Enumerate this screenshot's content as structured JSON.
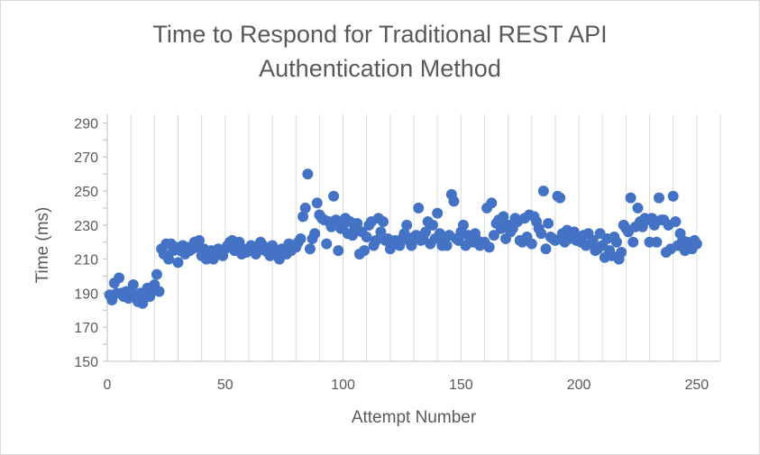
{
  "chart_data": {
    "type": "scatter",
    "title": "Time to Respond for Traditional REST API Authentication Method",
    "title_lines": [
      "Time to Respond for Traditional REST API",
      "Authentication Method"
    ],
    "xlabel": "Attempt Number",
    "ylabel": "Time (ms)",
    "xlim": [
      0,
      260
    ],
    "ylim": [
      150,
      295
    ],
    "x_ticks": [
      0,
      50,
      100,
      150,
      200,
      250
    ],
    "y_ticks": [
      150,
      170,
      190,
      210,
      230,
      250,
      270,
      290
    ],
    "grid": "vertical",
    "legend": "none",
    "marker_color": "#4472c4",
    "series": [
      {
        "x": [
          1,
          2,
          3,
          4,
          5,
          6,
          7,
          8,
          9,
          10,
          11,
          12,
          13,
          14,
          15,
          16,
          17,
          18,
          19,
          20,
          21,
          22,
          23,
          24,
          25,
          26,
          27,
          28,
          29,
          30,
          31,
          32,
          33,
          34,
          35,
          36,
          37,
          38,
          39,
          40,
          41,
          42,
          43,
          44,
          45,
          46,
          47,
          48,
          49,
          50,
          51,
          52,
          53,
          54,
          55,
          56,
          57,
          58,
          59,
          60,
          61,
          62,
          63,
          64,
          65,
          66,
          67,
          68,
          69,
          70,
          71,
          72,
          73,
          74,
          75,
          76,
          77,
          78,
          79,
          80,
          81,
          82,
          83,
          84,
          85,
          86,
          87,
          88,
          89,
          90,
          91,
          92,
          93,
          94,
          95,
          96,
          97,
          98,
          99,
          100,
          101,
          102,
          103,
          104,
          105,
          106,
          107,
          108,
          109,
          110,
          111,
          112,
          113,
          114,
          115,
          116,
          117,
          118,
          119,
          120,
          121,
          122,
          123,
          124,
          125,
          126,
          127,
          128,
          129,
          130,
          131,
          132,
          133,
          134,
          135,
          136,
          137,
          138,
          139,
          140,
          141,
          142,
          143,
          144,
          145,
          146,
          147,
          148,
          149,
          150,
          151,
          152,
          153,
          154,
          155,
          156,
          157,
          158,
          159,
          160,
          161,
          162,
          163,
          164,
          165,
          166,
          167,
          168,
          169,
          170,
          171,
          172,
          173,
          174,
          175,
          176,
          177,
          178,
          179,
          180,
          181,
          182,
          183,
          184,
          185,
          186,
          187,
          188,
          189,
          190,
          191,
          192,
          193,
          194,
          195,
          196,
          197,
          198,
          199,
          200,
          201,
          202,
          203,
          204,
          205,
          206,
          207,
          208,
          209,
          210,
          211,
          212,
          213,
          214,
          215,
          216,
          217,
          218,
          219,
          220,
          221,
          222,
          223,
          224,
          225,
          226,
          227,
          228,
          229,
          230,
          231,
          232,
          233,
          234,
          235,
          236,
          237,
          238,
          239,
          240,
          241,
          242,
          243,
          244,
          245,
          246,
          247,
          248,
          249,
          250
        ],
        "y": [
          189,
          186,
          196,
          190,
          199,
          190,
          188,
          191,
          187,
          190,
          195,
          189,
          185,
          190,
          184,
          189,
          193,
          188,
          191,
          195,
          201,
          191,
          216,
          213,
          219,
          210,
          219,
          215,
          217,
          208,
          215,
          218,
          213,
          217,
          215,
          216,
          220,
          217,
          221,
          212,
          216,
          210,
          213,
          215,
          210,
          213,
          216,
          215,
          212,
          216,
          218,
          220,
          221,
          215,
          217,
          220,
          213,
          216,
          214,
          215,
          218,
          217,
          213,
          216,
          220,
          218,
          215,
          214,
          212,
          218,
          213,
          212,
          210,
          216,
          214,
          213,
          219,
          215,
          218,
          217,
          220,
          222,
          235,
          240,
          260,
          216,
          222,
          225,
          243,
          236,
          234,
          233,
          219,
          232,
          229,
          247,
          233,
          215,
          228,
          230,
          234,
          225,
          232,
          224,
          228,
          231,
          213,
          226,
          215,
          223,
          230,
          232,
          218,
          221,
          234,
          226,
          232,
          221,
          222,
          216,
          219,
          221,
          220,
          218,
          222,
          225,
          230,
          221,
          218,
          223,
          224,
          240,
          221,
          223,
          226,
          232,
          219,
          230,
          222,
          237,
          225,
          218,
          220,
          218,
          224,
          248,
          244,
          222,
          221,
          226,
          230,
          218,
          224,
          222,
          220,
          225,
          221,
          218,
          219,
          220,
          240,
          217,
          243,
          224,
          231,
          233,
          228,
          235,
          222,
          230,
          226,
          228,
          234,
          232,
          221,
          220,
          234,
          223,
          236,
          219,
          235,
          232,
          228,
          225,
          250,
          216,
          231,
          223,
          222,
          221,
          247,
          246,
          225,
          220,
          227,
          222,
          224,
          226,
          221,
          222,
          220,
          224,
          218,
          225,
          219,
          221,
          215,
          216,
          225,
          218,
          211,
          222,
          215,
          212,
          223,
          220,
          210,
          214,
          230,
          228,
          226,
          246,
          220,
          229,
          240,
          232,
          229,
          234,
          233,
          220,
          234,
          230,
          220,
          246,
          233,
          233,
          214,
          230,
          216,
          247,
          232,
          218,
          225,
          221,
          215,
          220,
          219,
          216,
          221,
          219
        ]
      }
    ]
  }
}
